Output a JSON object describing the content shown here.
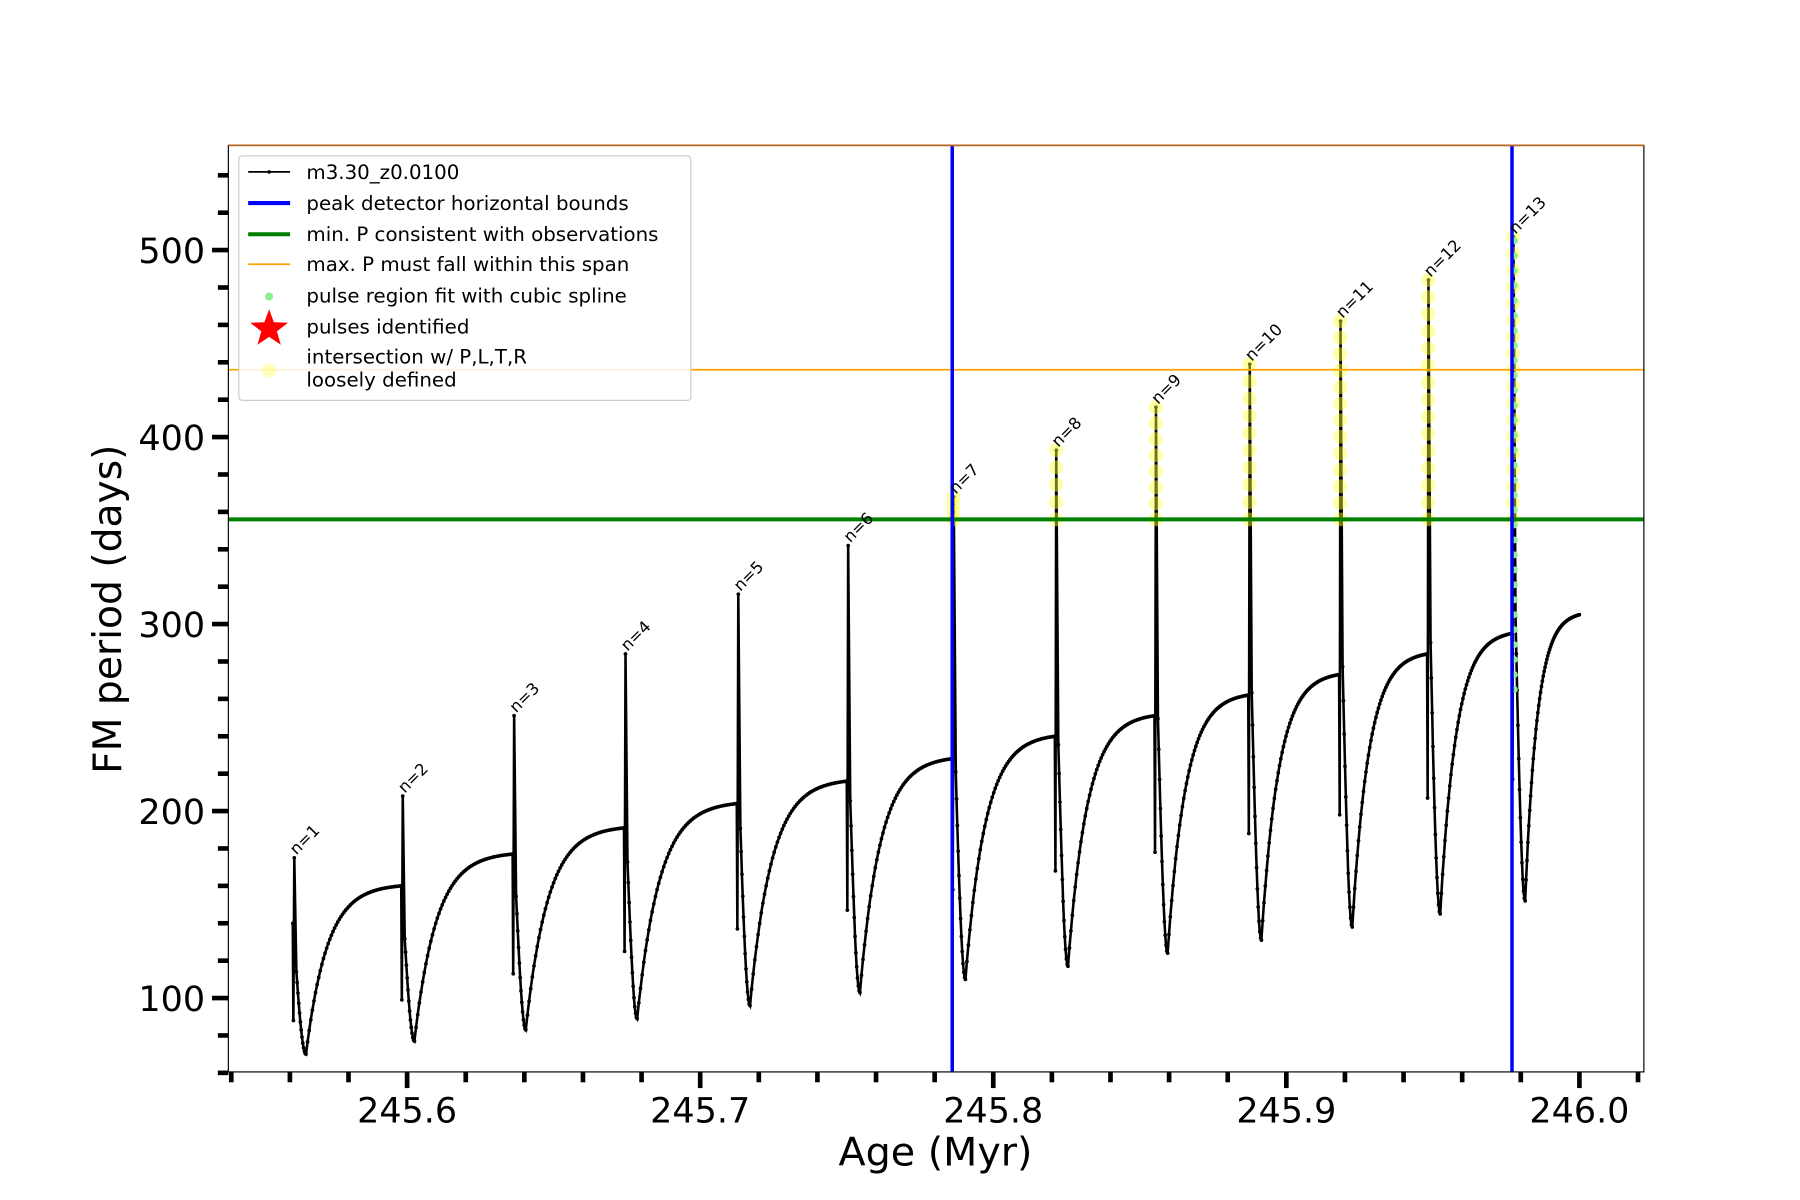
{
  "chart_data": {
    "type": "line",
    "xlabel": "Age (Myr)",
    "ylabel": "FM period (days)",
    "xlim": [
      245.539,
      246.022
    ],
    "ylim": [
      60.5,
      556
    ],
    "x_ticks": [
      "245.6",
      "245.7",
      "245.8",
      "245.9",
      "246.0"
    ],
    "x_tick_values": [
      245.6,
      245.7,
      245.8,
      245.9,
      246.0
    ],
    "y_ticks": [
      "100",
      "200",
      "300",
      "400",
      "500"
    ],
    "y_tick_values": [
      100,
      200,
      300,
      400,
      500
    ],
    "legend_position": "top-left",
    "legend": [
      {
        "label": "m3.30_z0.0100",
        "color": "#000000",
        "kind": "line-marker"
      },
      {
        "label": "peak detector horizontal bounds",
        "color": "#0000ff",
        "kind": "thick-line"
      },
      {
        "label": "min. P consistent with observations",
        "color": "#008000",
        "kind": "thick-line"
      },
      {
        "label": "max. P must fall within this span",
        "color": "#ffa500",
        "kind": "thin-line"
      },
      {
        "label": "pulse region fit with cubic spline",
        "color": "#90ee90",
        "kind": "dot"
      },
      {
        "label": "pulses identified",
        "color": "#ff0000",
        "kind": "star"
      },
      {
        "label": "intersection w/ P,L,T,R",
        "label2": "loosely defined",
        "color": "#ffff66",
        "kind": "circle"
      }
    ],
    "vlines": [
      245.786,
      245.977
    ],
    "hline_min_P": 356,
    "hline_max_P": 436,
    "end_point": {
      "age": 246.0,
      "period": 305
    },
    "pulses": [
      {
        "label": "n=1",
        "age": 245.561,
        "pre": 140,
        "peak": 175,
        "drop": 88,
        "min": 70
      },
      {
        "label": "n=2",
        "age": 245.598,
        "pre": 160,
        "peak": 208,
        "drop": 99,
        "min": 77
      },
      {
        "label": "n=3",
        "age": 245.636,
        "pre": 177,
        "peak": 251,
        "drop": 113,
        "min": 83
      },
      {
        "label": "n=4",
        "age": 245.674,
        "pre": 191,
        "peak": 284,
        "drop": 125,
        "min": 89
      },
      {
        "label": "n=5",
        "age": 245.7125,
        "pre": 204,
        "peak": 316,
        "drop": 137,
        "min": 96
      },
      {
        "label": "n=6",
        "age": 245.75,
        "pre": 216,
        "peak": 342,
        "drop": 147,
        "min": 103
      },
      {
        "label": "n=7",
        "age": 245.786,
        "pre": 228,
        "peak": 368,
        "drop": 158,
        "min": 110
      },
      {
        "label": "n=8",
        "age": 245.821,
        "pre": 240,
        "peak": 393,
        "drop": 168,
        "min": 117
      },
      {
        "label": "n=9",
        "age": 245.855,
        "pre": 251,
        "peak": 416,
        "drop": 178,
        "min": 124
      },
      {
        "label": "n=10",
        "age": 245.887,
        "pre": 262,
        "peak": 439,
        "drop": 188,
        "min": 131
      },
      {
        "label": "n=11",
        "age": 245.918,
        "pre": 273,
        "peak": 462,
        "drop": 198,
        "min": 138
      },
      {
        "label": "n=12",
        "age": 245.948,
        "pre": 284,
        "peak": 484,
        "drop": 207,
        "min": 145
      },
      {
        "label": "n=13",
        "age": 245.977,
        "pre": 295,
        "peak": 507,
        "drop": 217,
        "min": 152
      }
    ],
    "spline_dots": {
      "age": 245.977,
      "from": 265,
      "to": 505
    }
  }
}
